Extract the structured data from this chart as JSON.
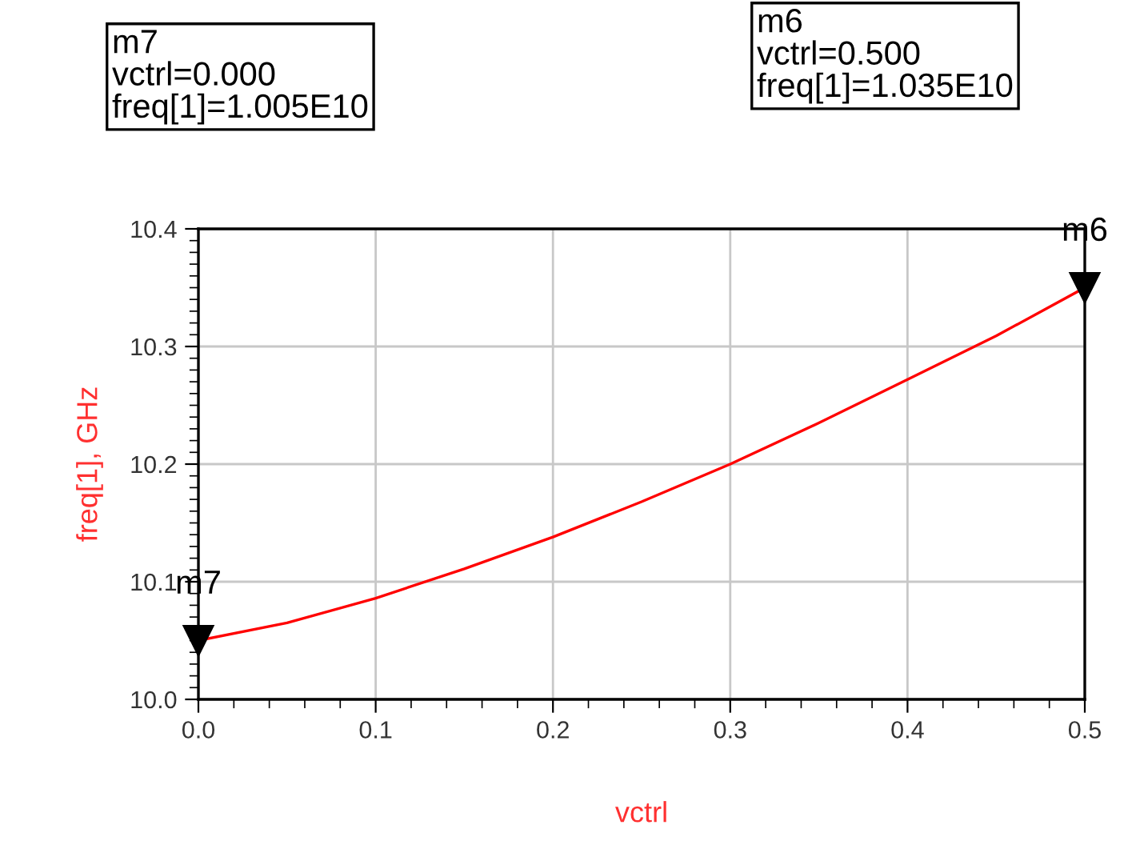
{
  "chart_data": {
    "type": "line",
    "xlabel": "vctrl",
    "ylabel": "freq[1], GHz",
    "x": [
      0,
      0.05,
      0.1,
      0.15,
      0.2,
      0.25,
      0.3,
      0.35,
      0.4,
      0.45,
      0.5
    ],
    "series": [
      {
        "color": "#ff0000",
        "values": [
          10.05,
          10.065,
          10.086,
          10.111,
          10.138,
          10.168,
          10.2,
          10.235,
          10.272,
          10.309,
          10.35
        ]
      }
    ],
    "xlim": [
      0,
      0.5
    ],
    "xticks": [
      {
        "value": 0,
        "label": "0.0"
      },
      0.1,
      0.2,
      0.3,
      0.4,
      0.5
    ],
    "ylim": [
      10.0,
      10.4
    ],
    "yticks": [
      {
        "value": 10.0,
        "label": "10.0"
      },
      10.1,
      10.2,
      10.3,
      10.4
    ],
    "grid": true,
    "marker": "none",
    "line_style": "solid",
    "annotations": [
      {
        "text": "m7",
        "x": 0,
        "y": 10.05
      },
      {
        "text": "m6",
        "x": 0.5,
        "y": 10.35
      },
      "m7\nvctrl=0.000\nfreq[1]=1.005E10",
      "m6\nvctrl=0.500\nfreq[1]=1.035E10"
    ]
  }
}
